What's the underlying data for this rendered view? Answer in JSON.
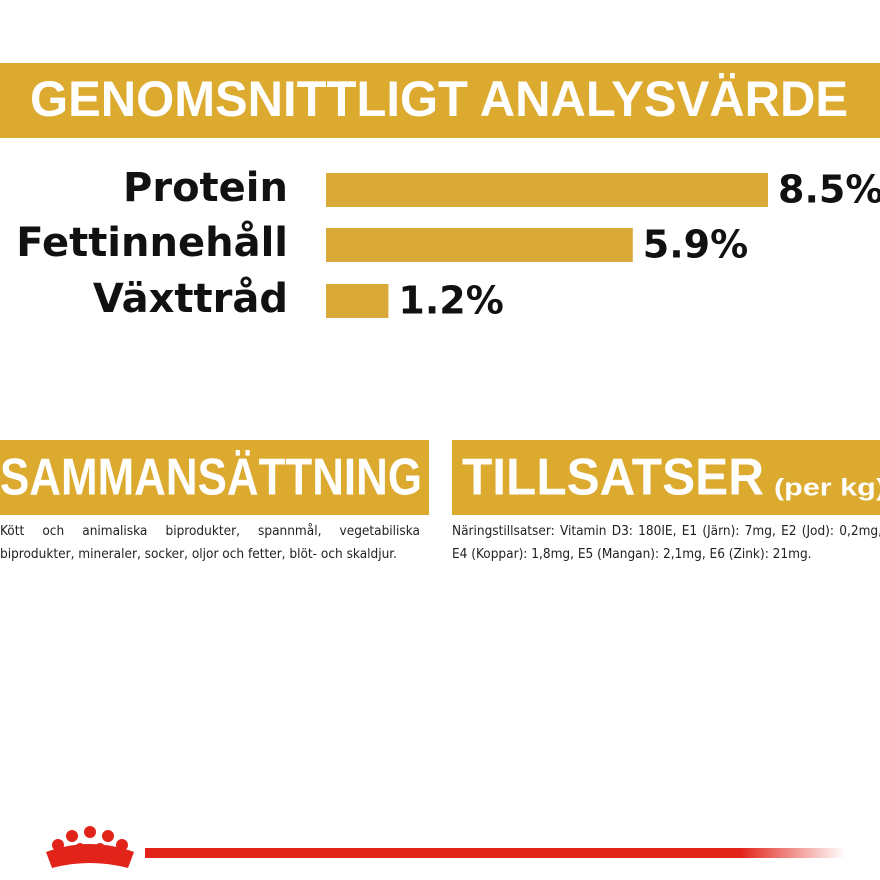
{
  "chart_data": {
    "type": "bar",
    "orientation": "horizontal",
    "title": "GENOMSNITTLIGT ANALYSVÄRDE",
    "categories": [
      "Protein",
      "Fettinnehåll",
      "Växttråd"
    ],
    "values": [
      8.5,
      5.9,
      1.2
    ],
    "value_labels": [
      "8.5%",
      "5.9%",
      "1.2%"
    ],
    "color": "#d9aa37"
  },
  "sections": [
    {
      "title": "SAMMANSÄTTNING",
      "text": "Kött och animaliska biprodukter, spannmål, vegetabiliska biprodukter, mineraler, socker, oljor och fetter, blöt- och skaldjur."
    },
    {
      "title": "TILLSATSER",
      "subtitle": "(per kg)",
      "text": "Näringstillsatser: Vitamin D3: 180IE, E1 (Järn): 7mg, E2 (Jod): 0,2mg, E4 (Koppar): 1,8mg, E5 (Mangan): 2,1mg, E6 (Zink): 21mg."
    }
  ]
}
